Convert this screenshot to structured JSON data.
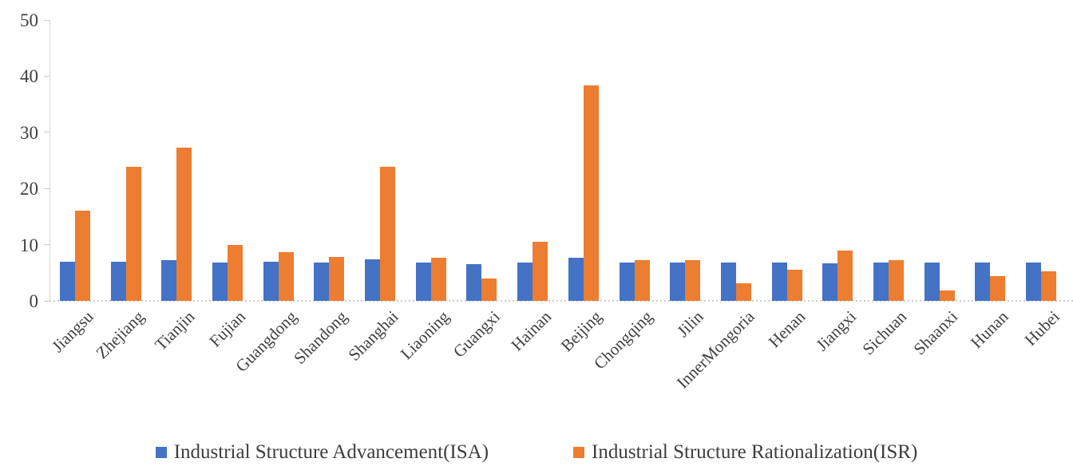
{
  "chart_data": {
    "type": "bar",
    "categories": [
      "Jiangsu",
      "Zhejiang",
      "Tianjin",
      "Fujian",
      "Guangdong",
      "Shandong",
      "Shanghai",
      "Liaoning",
      "Guangxi",
      "Hainan",
      "Beijing",
      "Chongqing",
      "Jilin",
      "InnerMongoria",
      "Henan",
      "Jiangxi",
      "Sichuan",
      "Shaanxi",
      "Hunan",
      "Hubei"
    ],
    "series": [
      {
        "name": "Industrial Structure Advancement(ISA)",
        "color": "#4472C4",
        "values": [
          7.0,
          7.0,
          7.2,
          6.8,
          7.0,
          6.8,
          7.4,
          6.8,
          6.6,
          6.8,
          7.6,
          6.8,
          6.8,
          6.8,
          6.8,
          6.7,
          6.8,
          6.8,
          6.8,
          6.8
        ]
      },
      {
        "name": "Industrial Structure Rationalization(ISR)",
        "color": "#ED7D31",
        "values": [
          16.1,
          23.9,
          27.3,
          10.0,
          8.6,
          7.8,
          23.8,
          7.7,
          4.0,
          10.5,
          38.4,
          7.2,
          7.2,
          3.1,
          5.6,
          9.0,
          7.2,
          1.9,
          4.4,
          5.2
        ]
      }
    ],
    "title": "",
    "xlabel": "",
    "ylabel": "",
    "ylim": [
      0,
      50
    ],
    "yticks": [
      0,
      10,
      20,
      30,
      40,
      50
    ],
    "grid": false,
    "legend_position": "bottom"
  },
  "colors": {
    "axis_line": "#d6d6d6",
    "tick_mark": "#c9c9c9",
    "tick_text": "#404040",
    "legend_text": "#3d3d3d"
  }
}
